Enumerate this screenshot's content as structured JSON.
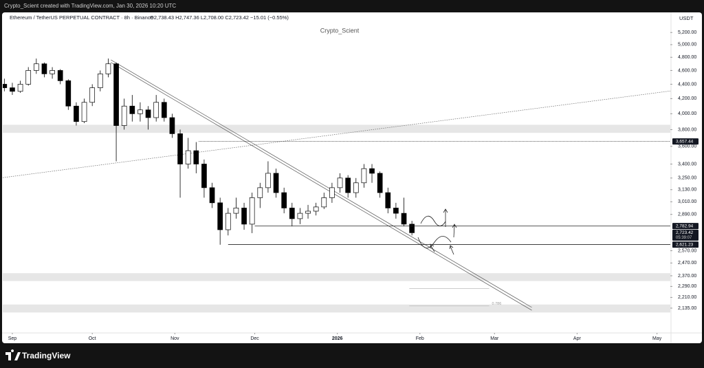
{
  "header": {
    "credit": "Crypto_Scient created with TradingView.com, Jan 30, 2026 10:20 UTC"
  },
  "footer": {
    "brand": "TradingView"
  },
  "chart_data": {
    "type": "candlestick",
    "title": "Ethereum / TetherUS PERPETUAL CONTRACT · 8h · Binance",
    "legend": [
      "O2,738.43",
      "H2,747.36",
      "L2,708.00",
      "C2,723.42",
      "−15.01 (−0.55%)"
    ],
    "watermark": "Crypto_Scient",
    "currency": "USDT",
    "log_scale": true,
    "up_color": "#ffffff",
    "down_color": "#000000",
    "x": [
      -3,
      0,
      3,
      6,
      9,
      12,
      15,
      18,
      21,
      24,
      27,
      30,
      33,
      36,
      39,
      42,
      45,
      48,
      51,
      54,
      57,
      60,
      63,
      66,
      69,
      72,
      75,
      78,
      81,
      84,
      87,
      90,
      93,
      96,
      99,
      102,
      105,
      108,
      111,
      114,
      117,
      120,
      123,
      126,
      129,
      132,
      135,
      138,
      141,
      144,
      147,
      150
    ],
    "open": [
      4400,
      4350,
      4300,
      4400,
      4600,
      4700,
      4550,
      4600,
      4450,
      4100,
      3900,
      4150,
      4350,
      4550,
      4700,
      3850,
      4100,
      4000,
      4050,
      3950,
      4150,
      3950,
      3750,
      3400,
      3550,
      3400,
      3150,
      3000,
      2750,
      2900,
      2950,
      2800,
      3050,
      3150,
      3300,
      3100,
      2950,
      2850,
      2900,
      2920,
      2960,
      3050,
      3150,
      3250,
      3100,
      3200,
      3350,
      3300,
      3100,
      2950,
      2900,
      2800
    ],
    "high": [
      4480,
      4420,
      4450,
      4650,
      4780,
      4720,
      4650,
      4620,
      4470,
      4150,
      4200,
      4400,
      4600,
      4780,
      4720,
      4200,
      4250,
      4150,
      4100,
      4250,
      4200,
      4000,
      3800,
      3700,
      3650,
      3450,
      3200,
      3050,
      2950,
      3050,
      3000,
      3100,
      3200,
      3430,
      3350,
      3150,
      3000,
      2950,
      2980,
      3000,
      3100,
      3200,
      3300,
      3280,
      3250,
      3400,
      3400,
      3320,
      3150,
      3000,
      3050,
      2830
    ],
    "low": [
      4300,
      4250,
      4280,
      4380,
      4550,
      4500,
      4480,
      4400,
      4050,
      3850,
      3880,
      4100,
      4300,
      4500,
      3430,
      3800,
      3900,
      3900,
      3800,
      3900,
      3900,
      3700,
      3050,
      3350,
      3300,
      3050,
      2950,
      2620,
      2700,
      2850,
      2750,
      2720,
      2950,
      3100,
      3050,
      2900,
      2780,
      2800,
      2850,
      2880,
      2940,
      3000,
      3100,
      3050,
      3050,
      3150,
      3200,
      3050,
      2900,
      2850,
      2780,
      2700
    ],
    "close": [
      4350,
      4300,
      4400,
      4600,
      4700,
      4550,
      4600,
      4450,
      4100,
      3900,
      4150,
      4350,
      4550,
      4700,
      3850,
      4100,
      4000,
      4050,
      3950,
      4150,
      3950,
      3750,
      3400,
      3550,
      3400,
      3150,
      3000,
      2750,
      2900,
      2950,
      2800,
      3050,
      3150,
      3300,
      3100,
      2950,
      2850,
      2900,
      2920,
      2960,
      3050,
      3150,
      3250,
      3100,
      3200,
      3350,
      3300,
      3100,
      2950,
      2900,
      2800,
      2723.42
    ],
    "xlim": [
      -3.6,
      247
    ],
    "xticks": [
      {
        "value": 0,
        "label": "Sep"
      },
      {
        "value": 30,
        "label": "Oct"
      },
      {
        "value": 61,
        "label": "Nov"
      },
      {
        "value": 91,
        "label": "Dec"
      },
      {
        "value": 122,
        "label": "2026"
      },
      {
        "value": 153,
        "label": "Feb"
      },
      {
        "value": 181,
        "label": "Mar"
      },
      {
        "value": 212,
        "label": "Apr"
      },
      {
        "value": 242,
        "label": "May"
      }
    ],
    "ylim": [
      1975,
      5500
    ],
    "yticks": [
      {
        "value": 5200,
        "label": "5,200.00"
      },
      {
        "value": 5000,
        "label": "5,000.00"
      },
      {
        "value": 4800,
        "label": "4,800.00"
      },
      {
        "value": 4600,
        "label": "4,600.00"
      },
      {
        "value": 4400,
        "label": "4,400.00"
      },
      {
        "value": 4200,
        "label": "4,200.00"
      },
      {
        "value": 4000,
        "label": "4,000.00"
      },
      {
        "value": 3800,
        "label": "3,800.00"
      },
      {
        "value": 3600,
        "label": "3,600.00"
      },
      {
        "value": 3400,
        "label": "3,400.00"
      },
      {
        "value": 3250,
        "label": "3,250.00"
      },
      {
        "value": 3130,
        "label": "3,130.00"
      },
      {
        "value": 3010,
        "label": "3,010.00"
      },
      {
        "value": 2890,
        "label": "2,890.00"
      },
      {
        "value": 2570,
        "label": "2,570.00"
      },
      {
        "value": 2470,
        "label": "2,470.00"
      },
      {
        "value": 2370,
        "label": "2,370.00"
      },
      {
        "value": 2290,
        "label": "2,290.00"
      },
      {
        "value": 2210,
        "label": "2,210.00"
      },
      {
        "value": 2135,
        "label": "2,135.00"
      }
    ],
    "hlines": [
      {
        "value": 3657.44,
        "label": "3,657.44",
        "start": 70,
        "style": "dotted"
      },
      {
        "value": 2782.94,
        "label": "2,782.94",
        "start": 91,
        "style": "solid"
      },
      {
        "value": 2621.23,
        "label": "2,621.23",
        "start": 81,
        "style": "solid"
      }
    ],
    "last_price": {
      "value": 2723.42,
      "label": "2,723.42",
      "countdown": "05:39:07"
    },
    "zones": [
      [
        3760,
        3860
      ],
      [
        2330,
        2390
      ],
      [
        2105,
        2160
      ]
    ],
    "trendlines": [
      {
        "points": [
          [
            37,
            4760
          ],
          [
            195,
            2140
          ]
        ],
        "style": "solid"
      },
      {
        "points": [
          [
            37,
            4720
          ],
          [
            195,
            2120
          ]
        ],
        "style": "solid"
      },
      {
        "points": [
          [
            -3.6,
            3254
          ],
          [
            247,
            4305
          ]
        ],
        "style": "dotted"
      }
    ],
    "fib_levels": [
      {
        "value": 2275,
        "range": [
          149,
          179
        ]
      },
      {
        "value": 2150,
        "range": [
          149,
          179
        ],
        "label": "0.786"
      }
    ]
  }
}
